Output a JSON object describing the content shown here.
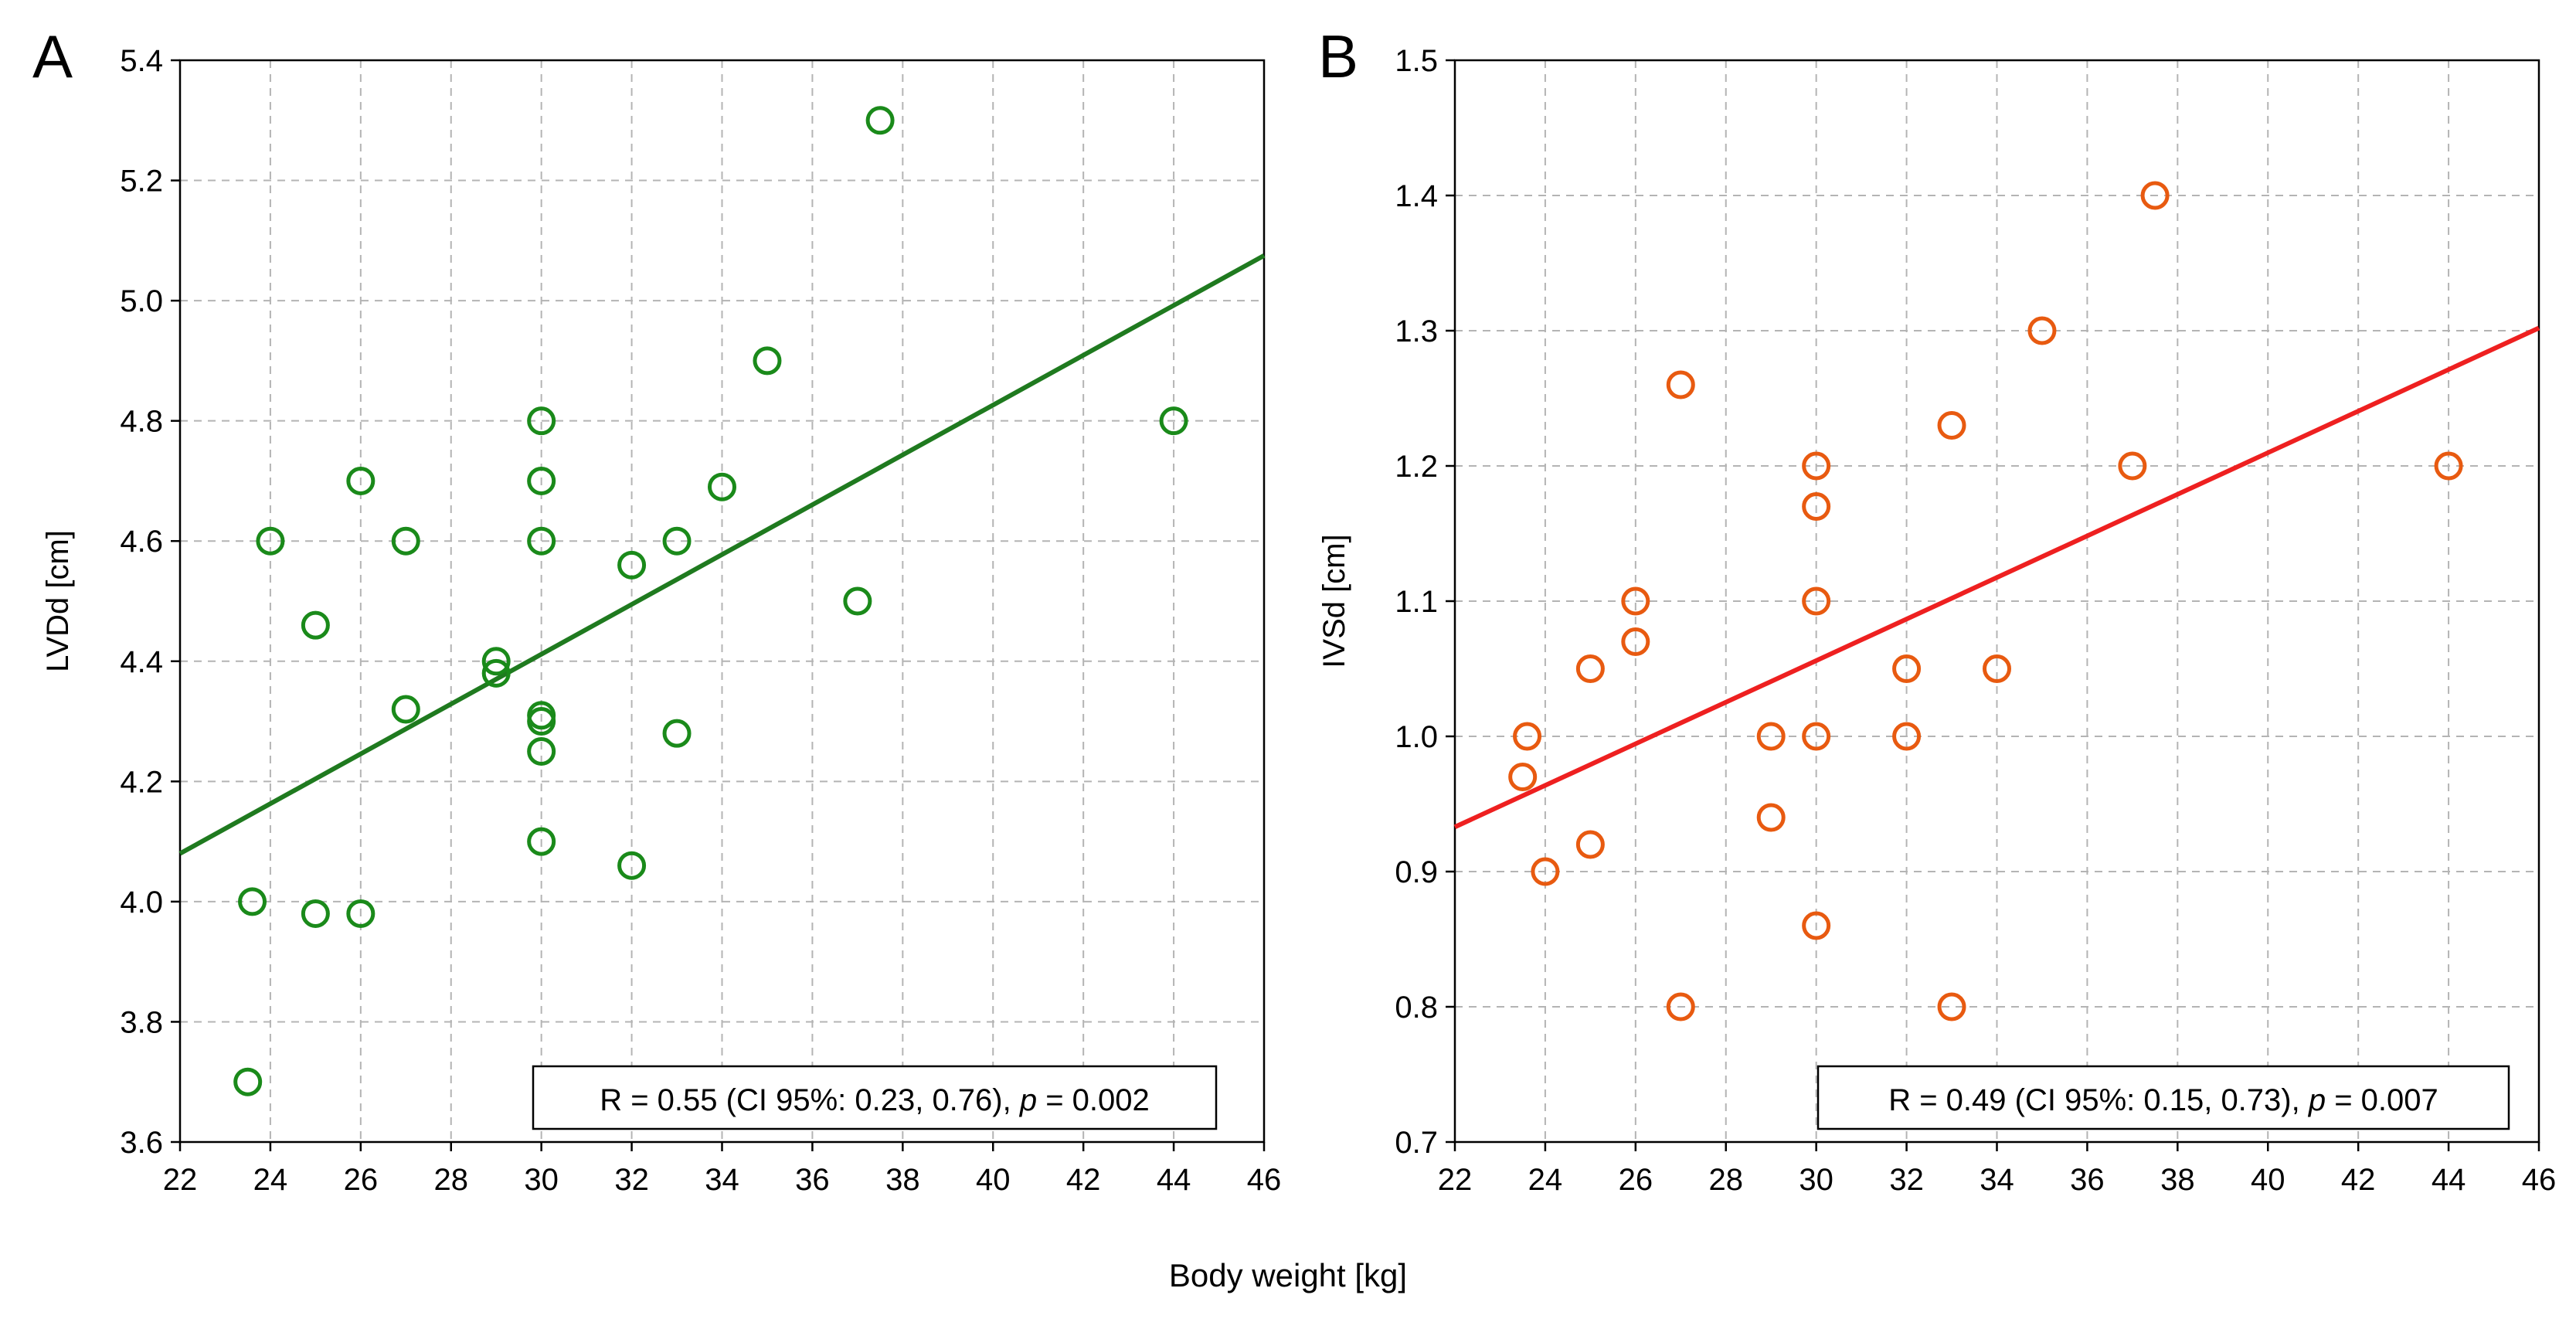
{
  "figure": {
    "xlabel": "Body weight [kg]"
  },
  "colors": {
    "panel_a": "#1a8a1a",
    "panel_b": "#e85a10",
    "line_a": "#1f7a1f",
    "line_b": "#ee2020",
    "grid": "#b4b4b4"
  },
  "chart_data": [
    {
      "type": "scatter",
      "panel_label": "A",
      "ylabel": "LVDd [cm]",
      "xlim": [
        22,
        46
      ],
      "ylim": [
        3.6,
        5.4
      ],
      "xticks": [
        "22",
        "24",
        "26",
        "28",
        "30",
        "32",
        "34",
        "36",
        "38",
        "40",
        "42",
        "44",
        "46"
      ],
      "yticks": [
        "3.6",
        "3.8",
        "4.0",
        "4.2",
        "4.4",
        "4.6",
        "4.8",
        "5.0",
        "5.2",
        "5.4"
      ],
      "grid": true,
      "points": [
        [
          23.5,
          3.7
        ],
        [
          23.6,
          4.0
        ],
        [
          24.0,
          4.6
        ],
        [
          25.0,
          4.46
        ],
        [
          25.0,
          3.98
        ],
        [
          26.0,
          4.7
        ],
        [
          26.0,
          3.98
        ],
        [
          27.0,
          4.6
        ],
        [
          27.0,
          4.32
        ],
        [
          29.0,
          4.4
        ],
        [
          29.0,
          4.38
        ],
        [
          30.0,
          4.8
        ],
        [
          30.0,
          4.7
        ],
        [
          30.0,
          4.6
        ],
        [
          30.0,
          4.31
        ],
        [
          30.0,
          4.3
        ],
        [
          30.0,
          4.25
        ],
        [
          30.0,
          4.1
        ],
        [
          32.0,
          4.56
        ],
        [
          32.0,
          4.06
        ],
        [
          33.0,
          4.6
        ],
        [
          33.0,
          4.28
        ],
        [
          34.0,
          4.69
        ],
        [
          35.0,
          4.9
        ],
        [
          37.0,
          4.5
        ],
        [
          37.5,
          5.3
        ],
        [
          44.0,
          4.8
        ]
      ],
      "regression": {
        "x": [
          22,
          46
        ],
        "y": [
          4.08,
          5.075
        ]
      },
      "annotation": {
        "prefix": "R = 0.55 (CI 95%: 0.23, 0.76), ",
        "p_symbol": "p",
        "suffix": " = 0.002"
      }
    },
    {
      "type": "scatter",
      "panel_label": "B",
      "ylabel": "IVSd [cm]",
      "xlim": [
        22,
        46
      ],
      "ylim": [
        0.7,
        1.5
      ],
      "xticks": [
        "22",
        "24",
        "26",
        "28",
        "30",
        "32",
        "34",
        "36",
        "38",
        "40",
        "42",
        "44",
        "46"
      ],
      "yticks": [
        "0.7",
        "0.8",
        "0.9",
        "1.0",
        "1.1",
        "1.2",
        "1.3",
        "1.4",
        "1.5"
      ],
      "grid": true,
      "points": [
        [
          23.5,
          0.97
        ],
        [
          23.6,
          1.0
        ],
        [
          24.0,
          0.9
        ],
        [
          25.0,
          1.05
        ],
        [
          25.0,
          0.92
        ],
        [
          26.0,
          1.1
        ],
        [
          26.0,
          1.07
        ],
        [
          27.0,
          1.26
        ],
        [
          27.0,
          0.8
        ],
        [
          29.0,
          1.0
        ],
        [
          29.0,
          0.94
        ],
        [
          30.0,
          1.2
        ],
        [
          30.0,
          1.17
        ],
        [
          30.0,
          1.1
        ],
        [
          30.0,
          1.0
        ],
        [
          30.0,
          0.86
        ],
        [
          32.0,
          1.05
        ],
        [
          32.0,
          1.0
        ],
        [
          33.0,
          1.23
        ],
        [
          33.0,
          0.8
        ],
        [
          34.0,
          1.05
        ],
        [
          35.0,
          1.3
        ],
        [
          37.0,
          1.2
        ],
        [
          37.5,
          1.4
        ],
        [
          44.0,
          1.2
        ]
      ],
      "regression": {
        "x": [
          22,
          46
        ],
        "y": [
          0.933,
          1.302
        ]
      },
      "annotation": {
        "prefix": "R = 0.49 (CI 95%: 0.15, 0.73), ",
        "p_symbol": "p",
        "suffix": " = 0.007"
      }
    }
  ]
}
